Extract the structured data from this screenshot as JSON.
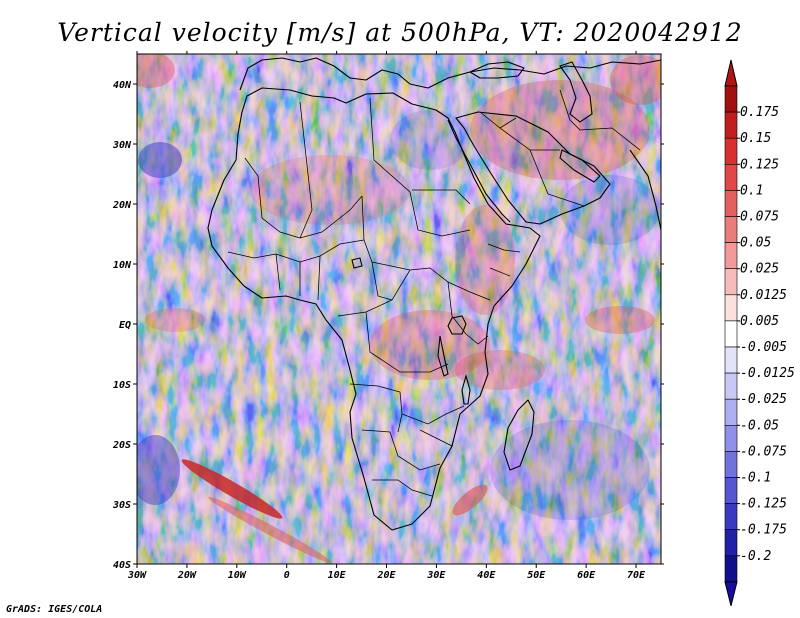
{
  "title": "Vertical velocity [m/s] at 500hPa, VT: 2020042912",
  "credit": "GrADS: IGES/COLA",
  "map": {
    "lon_range": [
      -30,
      75
    ],
    "lat_range": [
      -40,
      45
    ],
    "lon_ticks": [
      "30W",
      "20W",
      "10W",
      "0",
      "10E",
      "20E",
      "30E",
      "40E",
      "50E",
      "60E",
      "70E"
    ],
    "lon_values": [
      -30,
      -20,
      -10,
      0,
      10,
      20,
      30,
      40,
      50,
      60,
      70
    ],
    "lat_ticks": [
      "40N",
      "30N",
      "20N",
      "10N",
      "EQ",
      "10S",
      "20S",
      "30S",
      "40S"
    ],
    "lat_values": [
      40,
      30,
      20,
      10,
      0,
      -10,
      -20,
      -30,
      -40
    ]
  },
  "colorbar": {
    "labels": [
      "0.175",
      "0.15",
      "0.125",
      "0.1",
      "0.075",
      "0.05",
      "0.025",
      "0.0125",
      "0.005",
      "-0.005",
      "-0.0125",
      "-0.025",
      "-0.05",
      "-0.075",
      "-0.1",
      "-0.125",
      "-0.175",
      "-0.2"
    ],
    "colors": [
      "#a01010",
      "#c01e1e",
      "#d83030",
      "#e04848",
      "#e46060",
      "#ea7c7c",
      "#f09a9a",
      "#f6bcbc",
      "#fbe0e0",
      "#ffffff",
      "#e2e2fa",
      "#c8c8f5",
      "#aeaef0",
      "#9090e8",
      "#7272dc",
      "#5656d0",
      "#3a3ac0",
      "#2020a8",
      "#10108a"
    ],
    "top_color": "#b51414",
    "bottom_color": "#1a0aa0"
  }
}
